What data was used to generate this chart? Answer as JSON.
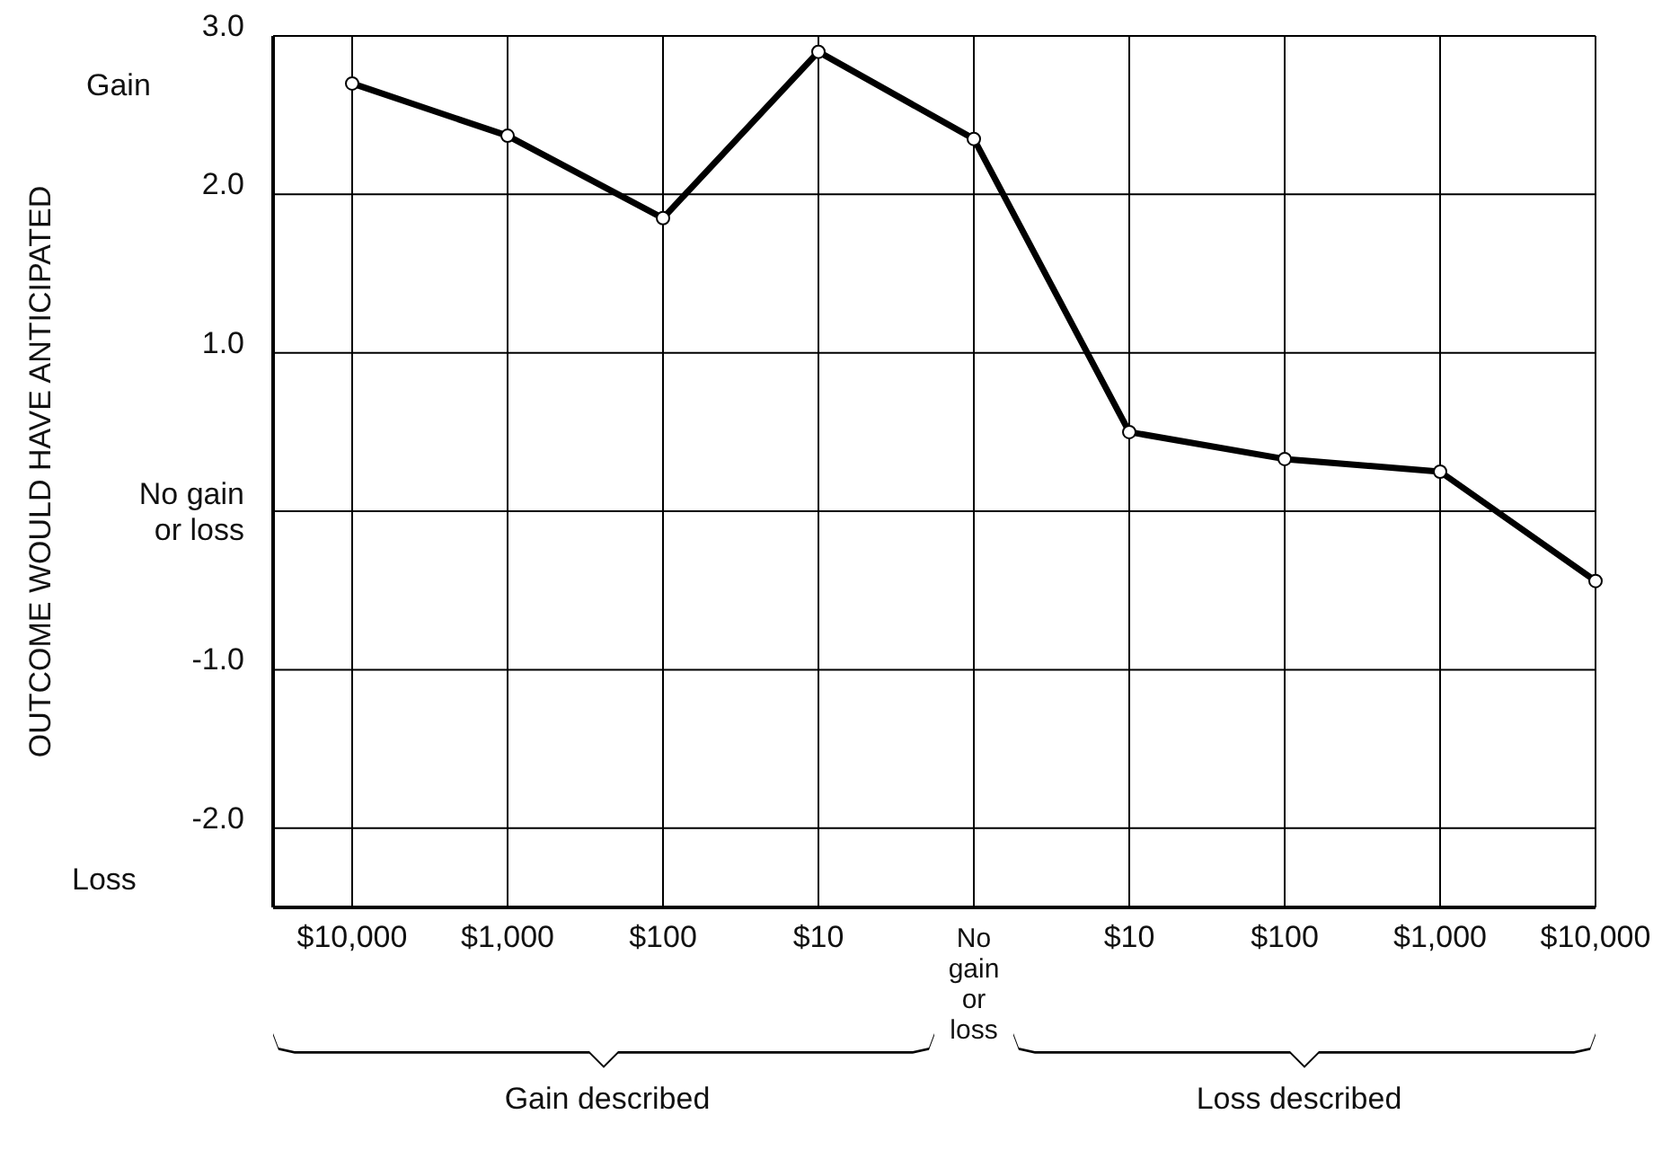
{
  "chart_data": {
    "type": "line",
    "ylabel": "OUTCOME WOULD HAVE ANTICIPATED",
    "categories": [
      "$10,000",
      "$1,000",
      "$100",
      "$10",
      "No gain or loss",
      "$10",
      "$100",
      "$1,000",
      "$10,000"
    ],
    "series": [
      {
        "color": "#000000",
        "values": [
          2.7,
          2.37,
          1.85,
          2.9,
          2.35,
          0.5,
          0.33,
          0.25,
          -0.44
        ]
      }
    ],
    "ylim": [
      -2.5,
      3
    ],
    "yticks": [
      {
        "value": 3,
        "label": "3.0"
      },
      {
        "value": 2,
        "label": "2.0"
      },
      {
        "value": 1,
        "label": "1.0"
      },
      {
        "value": 0,
        "label": "No gain or loss"
      },
      {
        "value": -1,
        "label": "-1.0"
      },
      {
        "value": -2,
        "label": "-2.0"
      }
    ],
    "grid": true,
    "marker": "circle",
    "line_style": "solid",
    "legend": false,
    "annotations": [
      "Gain",
      "Loss",
      "Gain described",
      "Loss described"
    ]
  }
}
